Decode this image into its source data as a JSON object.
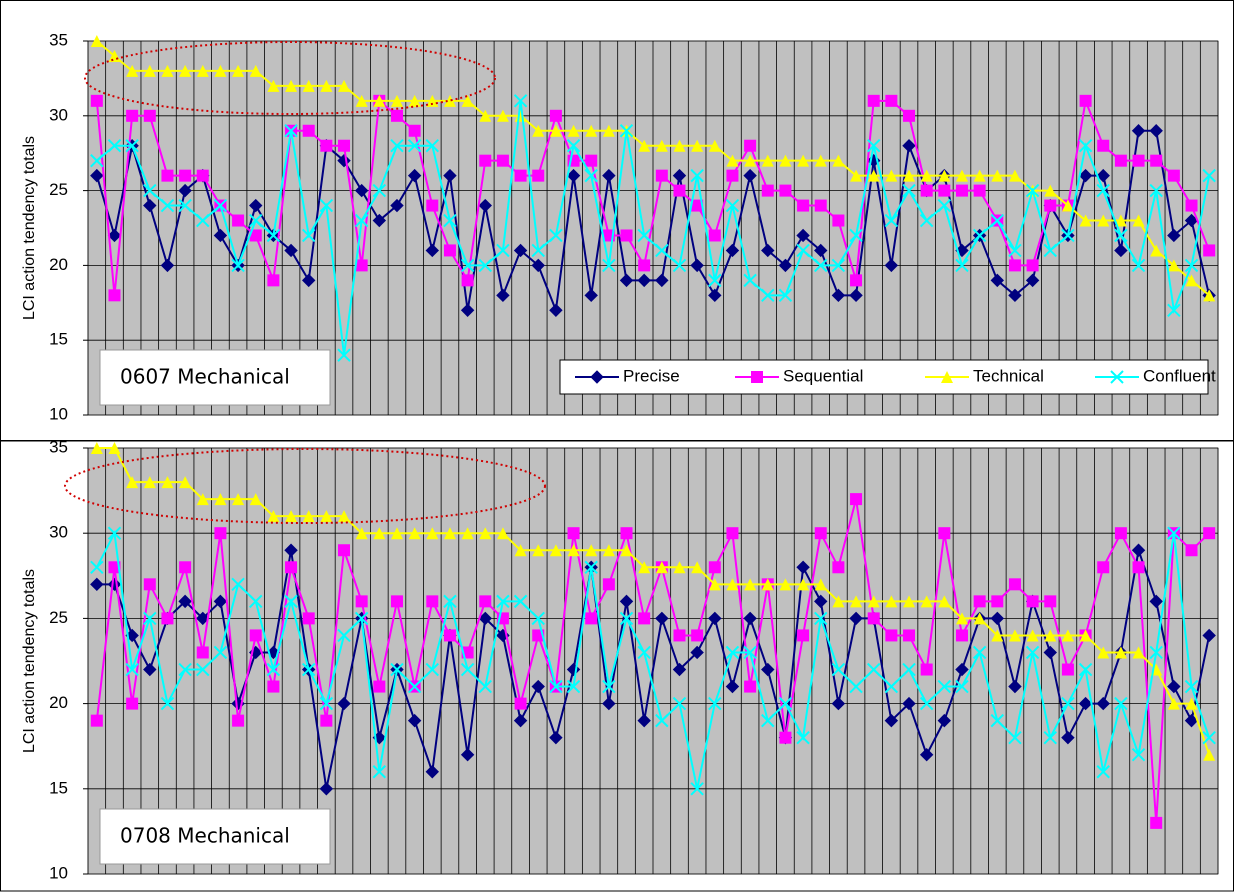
{
  "chart_data": [
    {
      "type": "line",
      "ylabel": "LCI action tendency totals",
      "annotation": "0607 Mechanical",
      "categories": [
        null,
        null,
        null,
        null,
        null,
        null,
        null,
        null,
        null,
        null,
        null,
        null,
        null,
        null,
        null,
        null,
        null,
        null,
        null,
        null,
        null,
        null,
        null,
        null,
        null,
        null,
        null,
        null,
        null,
        null,
        null,
        null,
        null,
        null,
        null,
        null,
        null,
        null,
        null,
        null,
        null,
        null,
        null,
        null,
        null,
        null,
        null,
        null,
        null,
        null,
        null,
        null,
        null,
        null,
        null,
        null,
        null,
        null,
        null,
        null,
        null,
        null,
        null,
        null
      ],
      "ylim": [
        10,
        35
      ],
      "yticks": [
        10,
        15,
        20,
        25,
        30,
        35
      ],
      "grid": true,
      "legend": "lower right",
      "series": [
        {
          "name": "Precise",
          "color": "#000080",
          "values": [
            26,
            22,
            28,
            24,
            20,
            25,
            26,
            22,
            20,
            24,
            22,
            21,
            19,
            28,
            27,
            25,
            23,
            24,
            26,
            21,
            26,
            17,
            24,
            18,
            21,
            20,
            17,
            26,
            18,
            26,
            19,
            19,
            19,
            26,
            20,
            18,
            21,
            26,
            21,
            20,
            22,
            21,
            18,
            18,
            27,
            20,
            28,
            25,
            26,
            21,
            22,
            19,
            18,
            19,
            24,
            22,
            26,
            26,
            21,
            29,
            29,
            22,
            23,
            18
          ]
        },
        {
          "name": "Sequential",
          "color": "#ff00ff",
          "values": [
            31,
            18,
            30,
            30,
            26,
            26,
            26,
            24,
            23,
            22,
            19,
            29,
            29,
            28,
            28,
            20,
            31,
            30,
            29,
            24,
            21,
            19,
            27,
            27,
            26,
            26,
            30,
            27,
            27,
            22,
            22,
            20,
            26,
            25,
            24,
            22,
            26,
            28,
            25,
            25,
            24,
            24,
            23,
            19,
            31,
            31,
            30,
            25,
            25,
            25,
            25,
            23,
            20,
            20,
            24,
            24,
            31,
            28,
            27,
            27,
            27,
            26,
            24,
            21
          ]
        },
        {
          "name": "Technical",
          "color": "#ffff00",
          "values": [
            35,
            34,
            33,
            33,
            33,
            33,
            33,
            33,
            33,
            33,
            32,
            32,
            32,
            32,
            32,
            31,
            31,
            31,
            31,
            31,
            31,
            31,
            30,
            30,
            30,
            29,
            29,
            29,
            29,
            29,
            29,
            28,
            28,
            28,
            28,
            28,
            27,
            27,
            27,
            27,
            27,
            27,
            27,
            26,
            26,
            26,
            26,
            26,
            26,
            26,
            26,
            26,
            26,
            25,
            25,
            24,
            23,
            23,
            23,
            23,
            21,
            20,
            19,
            18
          ]
        },
        {
          "name": "Confluent",
          "color": "#00ffff",
          "values": [
            27,
            28,
            28,
            25,
            24,
            24,
            23,
            24,
            20,
            23,
            22,
            29,
            22,
            24,
            14,
            23,
            25,
            28,
            28,
            28,
            23,
            20,
            20,
            21,
            31,
            21,
            22,
            28,
            26,
            20,
            29,
            22,
            21,
            20,
            26,
            19,
            24,
            19,
            18,
            18,
            21,
            20,
            20,
            22,
            28,
            23,
            25,
            23,
            24,
            20,
            22,
            23,
            21,
            25,
            21,
            22,
            28,
            25,
            22,
            20,
            25,
            17,
            20,
            26
          ]
        }
      ]
    },
    {
      "type": "line",
      "ylabel": "LCI action tendency totals",
      "annotation": "0708 Mechanical",
      "categories": [
        null,
        null,
        null,
        null,
        null,
        null,
        null,
        null,
        null,
        null,
        null,
        null,
        null,
        null,
        null,
        null,
        null,
        null,
        null,
        null,
        null,
        null,
        null,
        null,
        null,
        null,
        null,
        null,
        null,
        null,
        null,
        null,
        null,
        null,
        null,
        null,
        null,
        null,
        null,
        null,
        null,
        null,
        null,
        null,
        null,
        null,
        null,
        null,
        null,
        null,
        null,
        null,
        null,
        null,
        null,
        null,
        null,
        null,
        null,
        null,
        null,
        null,
        null,
        null
      ],
      "ylim": [
        10,
        35
      ],
      "yticks": [
        10,
        15,
        20,
        25,
        30,
        35
      ],
      "grid": true,
      "series": [
        {
          "color": "#000080",
          "values": [
            27,
            27,
            24,
            22,
            25,
            26,
            25,
            26,
            20,
            23,
            23,
            29,
            22,
            15,
            20,
            25,
            18,
            22,
            19,
            16,
            24,
            17,
            25,
            24,
            19,
            21,
            18,
            22,
            28,
            20,
            26,
            19,
            25,
            22,
            23,
            25,
            21,
            25,
            22,
            18,
            28,
            26,
            20,
            25,
            25,
            19,
            20,
            17,
            19,
            22,
            25,
            25,
            21,
            26,
            23,
            18,
            20,
            20,
            23,
            29,
            26,
            21,
            19,
            24
          ]
        },
        {
          "color": "#ff00ff",
          "values": [
            19,
            28,
            20,
            27,
            25,
            28,
            23,
            30,
            19,
            24,
            21,
            28,
            25,
            19,
            29,
            26,
            21,
            26,
            21,
            26,
            24,
            23,
            26,
            25,
            20,
            24,
            21,
            30,
            25,
            27,
            30,
            25,
            28,
            24,
            24,
            28,
            30,
            21,
            27,
            18,
            24,
            30,
            28,
            32,
            25,
            24,
            24,
            22,
            30,
            24,
            26,
            26,
            27,
            26,
            26,
            22,
            24,
            28,
            30,
            28,
            13,
            30,
            29,
            30
          ]
        },
        {
          "color": "#ffff00",
          "values": [
            35,
            35,
            33,
            33,
            33,
            33,
            32,
            32,
            32,
            32,
            31,
            31,
            31,
            31,
            31,
            30,
            30,
            30,
            30,
            30,
            30,
            30,
            30,
            30,
            29,
            29,
            29,
            29,
            29,
            29,
            29,
            28,
            28,
            28,
            28,
            27,
            27,
            27,
            27,
            27,
            27,
            27,
            26,
            26,
            26,
            26,
            26,
            26,
            26,
            25,
            25,
            24,
            24,
            24,
            24,
            24,
            24,
            23,
            23,
            23,
            22,
            20,
            20,
            17
          ]
        },
        {
          "color": "#00ffff",
          "values": [
            28,
            30,
            22,
            25,
            20,
            22,
            22,
            23,
            27,
            26,
            22,
            26,
            22,
            20,
            24,
            25,
            16,
            22,
            21,
            22,
            26,
            22,
            21,
            26,
            26,
            25,
            21,
            21,
            28,
            21,
            25,
            23,
            19,
            20,
            15,
            20,
            23,
            23,
            19,
            20,
            18,
            25,
            22,
            21,
            22,
            21,
            22,
            20,
            21,
            21,
            23,
            19,
            18,
            23,
            18,
            20,
            22,
            16,
            20,
            17,
            23,
            30,
            21,
            18
          ]
        }
      ]
    }
  ]
}
